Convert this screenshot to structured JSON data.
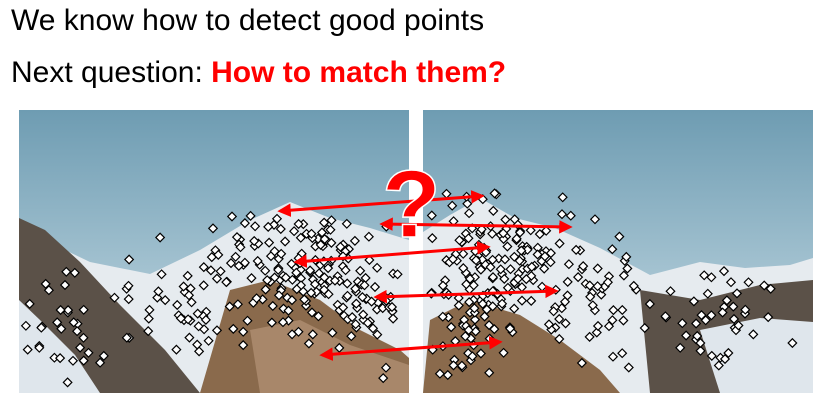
{
  "slide": {
    "line1": "We know how to detect good points",
    "line2_prefix": "Next question: ",
    "line2_highlight": "How to match them?",
    "question_mark": "?"
  },
  "colors": {
    "text": "#000000",
    "highlight": "#ff0000",
    "match_arrow": "#ff0000",
    "keypoint_fill": "#ffffff",
    "keypoint_stroke": "#000000"
  },
  "images": [
    {
      "name": "left-mountain-photo",
      "icon": "mountain-photo"
    },
    {
      "name": "right-mountain-photo",
      "icon": "mountain-photo"
    }
  ]
}
